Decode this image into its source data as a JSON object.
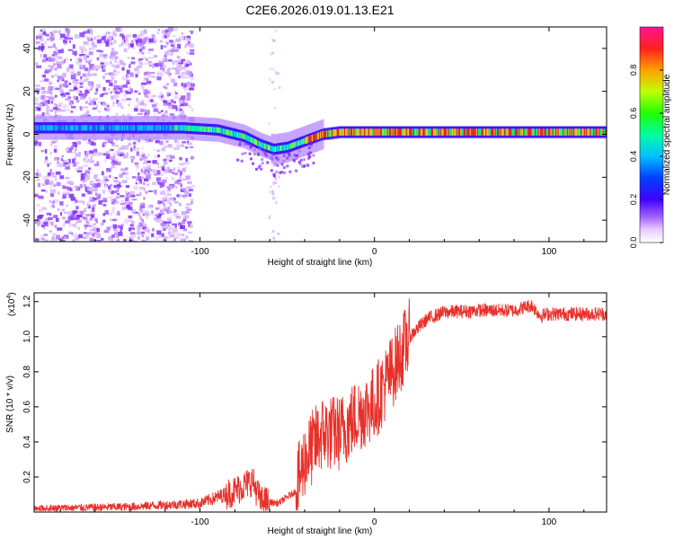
{
  "title": "C2E6.2026.019.01.13.E21",
  "chart_data": [
    {
      "type": "heatmap",
      "xlabel": "Height of straight line (km)",
      "ylabel": "Frequency (Hz)",
      "xlim": [
        -195,
        133
      ],
      "ylim": [
        -50,
        50
      ],
      "x_ticks": [
        -100,
        0,
        100
      ],
      "y_ticks": [
        -40,
        -20,
        0,
        20,
        40
      ],
      "colorbar": {
        "label": "Normalized spectral amplitude",
        "range": [
          0,
          1
        ],
        "ticks": [
          "0.0",
          "0.2",
          "0.4",
          "0.6",
          "0.8"
        ],
        "tick_values": [
          0,
          0.2,
          0.4,
          0.6,
          0.8
        ]
      },
      "ridge": {
        "description_points_x": [
          -195,
          -150,
          -110,
          -90,
          -75,
          -65,
          -58,
          -50,
          -40,
          -30,
          -20,
          -10,
          0,
          20,
          50,
          80,
          100,
          133
        ],
        "description_points_y": [
          3,
          3,
          3,
          2,
          -1,
          -5,
          -7,
          -6,
          -3,
          0,
          1,
          1,
          1,
          1,
          1,
          1,
          1,
          1
        ]
      }
    },
    {
      "type": "line",
      "xlabel": "Height of straight line (km)",
      "ylabel": "SNR (10 * v/v)",
      "y_multiplier": "(x10^4)",
      "multiplier_base": "(x10",
      "multiplier_exp": "4",
      "multiplier_close": ")",
      "xlim": [
        -195,
        133
      ],
      "ylim": [
        0,
        1.25
      ],
      "x_ticks": [
        -100,
        0,
        100
      ],
      "y_ticks": [
        0.2,
        0.4,
        0.6,
        0.8,
        1.0,
        1.2
      ],
      "y_tick_labels": [
        "0.2",
        "0.4",
        "0.6",
        "0.8",
        "1.0",
        "1.2"
      ],
      "series_color": "#e8302a",
      "trend_x": [
        -195,
        -140,
        -120,
        -100,
        -80,
        -70,
        -65,
        -55,
        -45,
        -40,
        -30,
        -20,
        -10,
        0,
        10,
        20,
        30,
        40,
        60,
        80,
        90,
        95,
        100,
        133
      ],
      "trend_y": [
        0.02,
        0.03,
        0.04,
        0.05,
        0.12,
        0.18,
        0.06,
        0.05,
        0.12,
        0.3,
        0.45,
        0.45,
        0.55,
        0.62,
        0.8,
        1.0,
        1.1,
        1.14,
        1.15,
        1.15,
        1.18,
        1.12,
        1.13,
        1.13
      ]
    }
  ]
}
